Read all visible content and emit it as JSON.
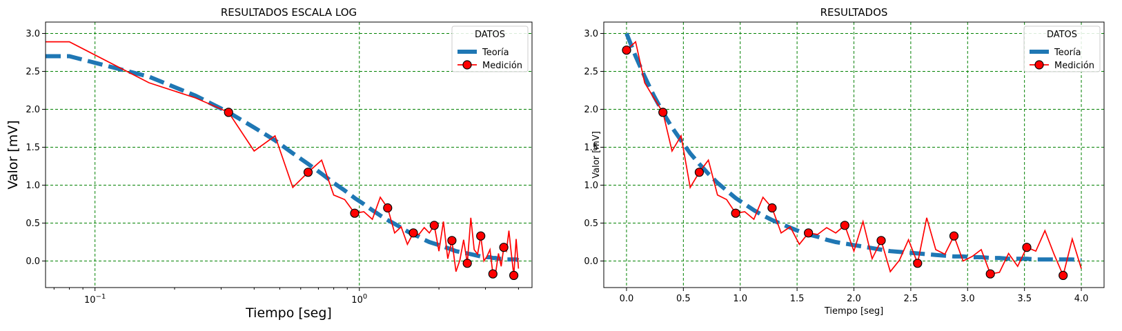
{
  "chart_data": [
    {
      "type": "line",
      "title": "RESULTADOS ESCALA LOG",
      "xlabel": "Tiempo [seg]",
      "ylabel": "Valor [mV]",
      "xscale": "log",
      "xlim": [
        0.065,
        4.5
      ],
      "ylim": [
        -0.35,
        3.15
      ],
      "xticks": [
        0.1,
        1
      ],
      "yticks": [
        0.0,
        0.5,
        1.0,
        1.5,
        2.0,
        2.5,
        3.0
      ],
      "grid": true,
      "legend": {
        "title": "DATOS",
        "placement": "top-right"
      },
      "series_ref": "shared"
    },
    {
      "type": "line",
      "title": "RESULTADOS",
      "xlabel": "Tiempo [seg]",
      "ylabel": "Valor [mV]",
      "xscale": "linear",
      "xlim": [
        -0.2,
        4.2
      ],
      "ylim": [
        -0.35,
        3.15
      ],
      "xticks": [
        0.0,
        0.5,
        1.0,
        1.5,
        2.0,
        2.5,
        3.0,
        3.5,
        4.0
      ],
      "yticks": [
        0.0,
        0.5,
        1.0,
        1.5,
        2.0,
        2.5,
        3.0
      ],
      "grid": true,
      "legend": {
        "title": "DATOS",
        "placement": "top-right"
      },
      "series_ref": "shared"
    }
  ],
  "series": [
    {
      "name": "Teoría",
      "color": "#1f77b4",
      "style": "dashed",
      "x": [
        0.0,
        0.08,
        0.16,
        0.24,
        0.32,
        0.4,
        0.48,
        0.56,
        0.64,
        0.72,
        0.8,
        0.88,
        0.96,
        1.04,
        1.12,
        1.2,
        1.28,
        1.36,
        1.44,
        1.52,
        1.6,
        1.68,
        1.76,
        1.84,
        1.92,
        2.0,
        2.08,
        2.16,
        2.24,
        2.32,
        2.4,
        2.48,
        2.56,
        2.64,
        2.72,
        2.8,
        2.88,
        2.96,
        3.04,
        3.12,
        3.2,
        3.28,
        3.36,
        3.44,
        3.52,
        3.6,
        3.68,
        3.76,
        3.84,
        3.92,
        4.0
      ],
      "y": [
        3.0,
        2.7,
        2.43,
        2.18,
        1.96,
        1.76,
        1.59,
        1.42,
        1.28,
        1.15,
        1.03,
        0.93,
        0.83,
        0.75,
        0.67,
        0.6,
        0.54,
        0.49,
        0.44,
        0.39,
        0.35,
        0.32,
        0.28,
        0.25,
        0.23,
        0.21,
        0.19,
        0.17,
        0.15,
        0.13,
        0.12,
        0.11,
        0.1,
        0.09,
        0.08,
        0.07,
        0.06,
        0.06,
        0.05,
        0.05,
        0.04,
        0.04,
        0.03,
        0.03,
        0.03,
        0.02,
        0.02,
        0.02,
        0.02,
        0.02,
        0.01
      ]
    },
    {
      "name": "Medición",
      "color": "#ff0000",
      "style": "solid",
      "x": [
        0.0,
        0.08,
        0.16,
        0.24,
        0.32,
        0.4,
        0.48,
        0.56,
        0.64,
        0.72,
        0.8,
        0.88,
        0.96,
        1.04,
        1.12,
        1.2,
        1.28,
        1.36,
        1.44,
        1.52,
        1.6,
        1.68,
        1.76,
        1.84,
        1.92,
        2.0,
        2.08,
        2.16,
        2.24,
        2.32,
        2.4,
        2.48,
        2.56,
        2.64,
        2.72,
        2.8,
        2.88,
        2.96,
        3.04,
        3.12,
        3.2,
        3.28,
        3.36,
        3.44,
        3.52,
        3.6,
        3.68,
        3.76,
        3.84,
        3.92,
        4.0
      ],
      "y": [
        2.78,
        2.89,
        2.35,
        2.15,
        1.96,
        1.45,
        1.65,
        0.97,
        1.17,
        1.33,
        0.87,
        0.81,
        0.63,
        0.65,
        0.55,
        0.84,
        0.7,
        0.37,
        0.45,
        0.22,
        0.37,
        0.35,
        0.44,
        0.37,
        0.47,
        0.13,
        0.52,
        0.03,
        0.27,
        -0.14,
        0.01,
        0.28,
        -0.03,
        0.57,
        0.15,
        0.09,
        0.33,
        0.0,
        0.06,
        0.15,
        -0.17,
        -0.15,
        0.1,
        -0.07,
        0.18,
        0.13,
        0.4,
        0.09,
        -0.19,
        0.29,
        -0.1
      ],
      "marker_x": [
        0.0,
        0.32,
        0.64,
        0.96,
        1.28,
        1.6,
        1.92,
        2.24,
        2.56,
        2.88,
        3.2,
        3.52,
        3.84
      ],
      "marker_y": [
        2.78,
        1.96,
        1.17,
        0.63,
        0.7,
        0.37,
        0.47,
        0.27,
        -0.03,
        0.33,
        -0.17,
        0.18,
        -0.19
      ]
    }
  ]
}
